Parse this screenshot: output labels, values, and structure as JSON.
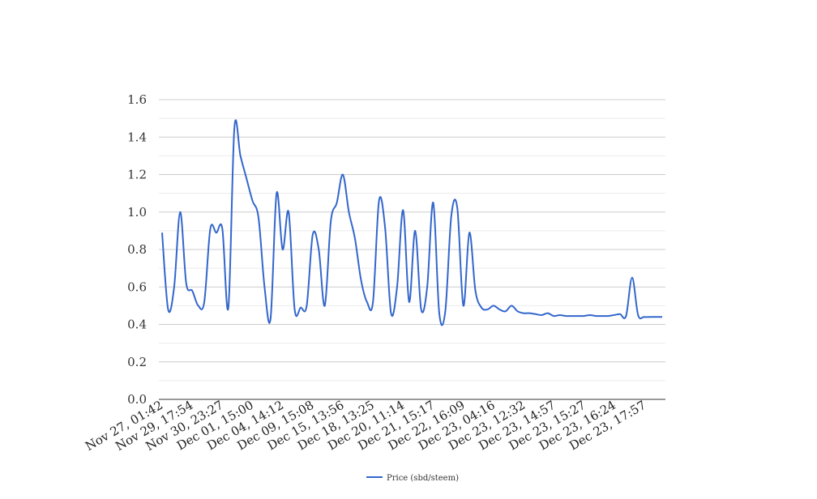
{
  "chart_data": {
    "type": "line",
    "title": "",
    "xlabel": "",
    "ylabel": "",
    "ylim": [
      0,
      1.6
    ],
    "yticks": [
      "0.0",
      "0.2",
      "0.4",
      "0.6",
      "0.8",
      "1.0",
      "1.2",
      "1.4",
      "1.6"
    ],
    "grid": true,
    "legend_position": "bottom",
    "xtick_labels": [
      "Nov 27, 01:42",
      "Nov 29, 17:54",
      "Nov 30, 23:27",
      "Dec 01, 15:00",
      "Dec 04, 14:12",
      "Dec 09, 15:08",
      "Dec 15, 13:56",
      "Dec 18, 13:25",
      "Dec 20, 11:14",
      "Dec 21, 15:17",
      "Dec 22, 16:09",
      "Dec 23, 04:16",
      "Dec 23, 12:32",
      "Dec 23, 14:57",
      "Dec 23, 15:27",
      "Dec 23, 16:24",
      "Dec 23, 17:57"
    ],
    "series": [
      {
        "name": "Price (sbd/steem)",
        "color": "#3366cc",
        "values": [
          0.89,
          0.48,
          0.6,
          1.0,
          0.62,
          0.58,
          0.5,
          0.52,
          0.91,
          0.89,
          0.91,
          0.49,
          1.45,
          1.3,
          1.18,
          1.06,
          0.97,
          0.6,
          0.43,
          1.1,
          0.8,
          1.0,
          0.48,
          0.49,
          0.5,
          0.88,
          0.8,
          0.5,
          0.95,
          1.05,
          1.2,
          1.0,
          0.86,
          0.64,
          0.52,
          0.52,
          1.06,
          0.92,
          0.46,
          0.6,
          1.01,
          0.52,
          0.9,
          0.48,
          0.6,
          1.05,
          0.46,
          0.47,
          0.98,
          1.02,
          0.5,
          0.89,
          0.58,
          0.49,
          0.48,
          0.5,
          0.48,
          0.47,
          0.5,
          0.47,
          0.46,
          0.46,
          0.455,
          0.45,
          0.46,
          0.445,
          0.45,
          0.445,
          0.445,
          0.445,
          0.445,
          0.45,
          0.445,
          0.445,
          0.445,
          0.45,
          0.455,
          0.445,
          0.65,
          0.45,
          0.44,
          0.44,
          0.44,
          0.44
        ]
      }
    ]
  }
}
